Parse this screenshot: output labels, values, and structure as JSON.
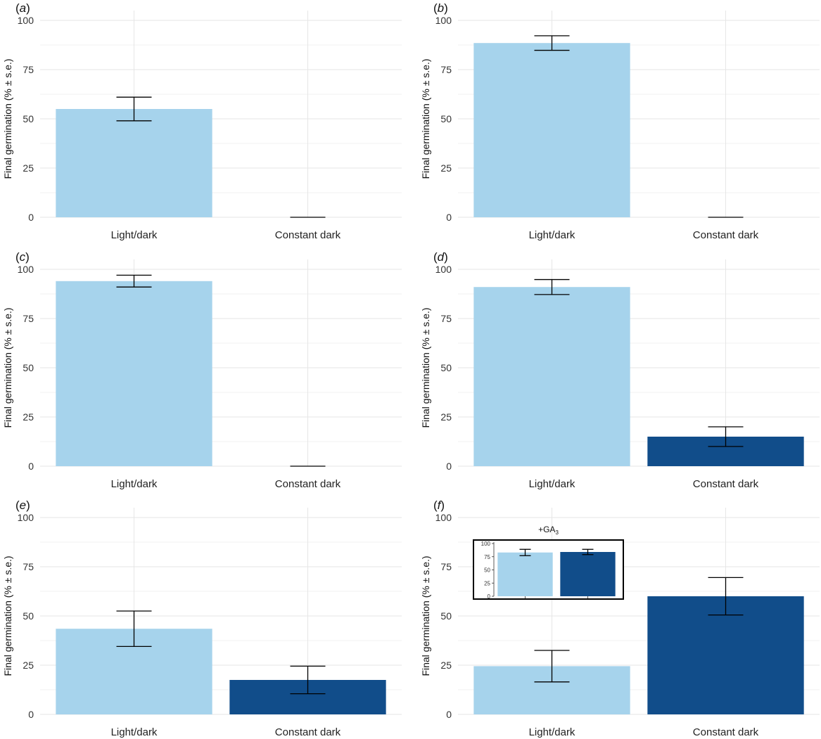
{
  "palette": {
    "light_dark_bar": "#a6d3ec",
    "constant_dark_bar": "#114d8a",
    "error_bar": "#000000",
    "grid": "#e6e6e6"
  },
  "chart_data": [
    {
      "type": "bar",
      "panel": "a",
      "categories": [
        "Light/dark",
        "Constant dark"
      ],
      "values": [
        55,
        0
      ],
      "errors": [
        6,
        0
      ],
      "ylabel": "Final germination (% ± s.e.)",
      "yticks": [
        0,
        25,
        50,
        75,
        100
      ],
      "ylim": [
        0,
        100
      ],
      "grid": true
    },
    {
      "type": "bar",
      "panel": "b",
      "categories": [
        "Light/dark",
        "Constant dark"
      ],
      "values": [
        88.5,
        0
      ],
      "errors": [
        3.7,
        0
      ],
      "ylabel": "Final germination (% ± s.e.)",
      "yticks": [
        0,
        25,
        50,
        75,
        100
      ],
      "ylim": [
        0,
        100
      ],
      "grid": true
    },
    {
      "type": "bar",
      "panel": "c",
      "categories": [
        "Light/dark",
        "Constant dark"
      ],
      "values": [
        94,
        0
      ],
      "errors": [
        3,
        0
      ],
      "ylabel": "Final germination (% ± s.e.)",
      "yticks": [
        0,
        25,
        50,
        75,
        100
      ],
      "ylim": [
        0,
        100
      ],
      "grid": true
    },
    {
      "type": "bar",
      "panel": "d",
      "categories": [
        "Light/dark",
        "Constant dark"
      ],
      "values": [
        91,
        15
      ],
      "errors": [
        3.8,
        5
      ],
      "ylabel": "Final germination (% ± s.e.)",
      "yticks": [
        0,
        25,
        50,
        75,
        100
      ],
      "ylim": [
        0,
        100
      ],
      "grid": true
    },
    {
      "type": "bar",
      "panel": "e",
      "categories": [
        "Light/dark",
        "Constant dark"
      ],
      "values": [
        43.5,
        17.5
      ],
      "errors": [
        9,
        7
      ],
      "ylabel": "Final germination (% ± s.e.)",
      "yticks": [
        0,
        25,
        50,
        75,
        100
      ],
      "ylim": [
        0,
        100
      ],
      "grid": true
    },
    {
      "type": "bar",
      "panel": "f",
      "categories": [
        "Light/dark",
        "Constant dark"
      ],
      "values": [
        24.5,
        60
      ],
      "errors": [
        8,
        9.5
      ],
      "ylabel": "Final germination (% ± s.e.)",
      "yticks": [
        0,
        25,
        50,
        75,
        100
      ],
      "ylim": [
        0,
        100
      ],
      "grid": true,
      "inset": {
        "type": "bar",
        "title_main": "+GA",
        "title_sub": "3",
        "values": [
          83,
          84
        ],
        "errors": [
          6,
          5
        ],
        "yticks": [
          0,
          25,
          50,
          75,
          100
        ],
        "ylim": [
          0,
          100
        ]
      }
    }
  ]
}
